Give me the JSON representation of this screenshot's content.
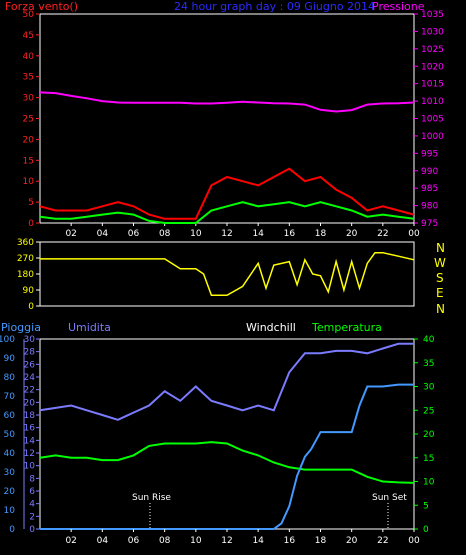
{
  "header": {
    "left": "Forza vento()",
    "center": "24 hour graph day : 09 Giugno 2014",
    "right": "Pressione",
    "left_color": "#ff2020",
    "center_color": "#2b2bff",
    "right_color": "#ff00ff"
  },
  "wind_dir_labels": [
    "N",
    "W",
    "S",
    "E",
    "N"
  ],
  "bottom_header": {
    "pioggia": "Pioggia",
    "umidita": "Umidita",
    "windchill": "Windchill",
    "temperatura": "Temperatura"
  },
  "annotations": {
    "sunrise": "Sun Rise",
    "sunset": "Sun Set"
  },
  "chart_data": [
    {
      "type": "line",
      "name": "wind-pressure",
      "x_ticks": [
        "02",
        "04",
        "06",
        "08",
        "10",
        "12",
        "14",
        "16",
        "18",
        "20",
        "22",
        "00"
      ],
      "y_left_ticks": [
        "0",
        "5",
        "10",
        "15",
        "20",
        "25",
        "30",
        "35",
        "40",
        "45",
        "50"
      ],
      "y_left_range": [
        0,
        50
      ],
      "y_right_ticks": [
        "975",
        "980",
        "985",
        "990",
        "995",
        "1000",
        "1005",
        "1010",
        "1015",
        "1020",
        "1025",
        "1030",
        "1035"
      ],
      "y_right_range": [
        975,
        1035
      ],
      "series": [
        {
          "key": "pressure",
          "color": "#ff00ff",
          "x": [
            0,
            1,
            2,
            3,
            4,
            5,
            6,
            7,
            8,
            9,
            10,
            11,
            12,
            13,
            14,
            15,
            16,
            17,
            18,
            19,
            20,
            21,
            22,
            23,
            24
          ],
          "values": [
            1012.5,
            1012.3,
            1011.5,
            1010.8,
            1010.0,
            1009.6,
            1009.5,
            1009.5,
            1009.5,
            1009.5,
            1009.3,
            1009.3,
            1009.5,
            1009.8,
            1009.6,
            1009.4,
            1009.3,
            1009.0,
            1007.5,
            1007.0,
            1007.4,
            1009.0,
            1009.3,
            1009.4,
            1009.6
          ]
        },
        {
          "key": "wind_gust",
          "color": "#ff0000",
          "x": [
            0,
            1,
            2,
            3,
            4,
            5,
            6,
            7,
            8,
            9,
            10,
            11,
            12,
            13,
            14,
            15,
            16,
            17,
            18,
            19,
            20,
            21,
            22,
            23,
            24
          ],
          "values": [
            4,
            3,
            3,
            3,
            4,
            5,
            4,
            2,
            1,
            1,
            1,
            9,
            11,
            10,
            9,
            11,
            13,
            10,
            11,
            8,
            6,
            3,
            4,
            3,
            2
          ]
        },
        {
          "key": "wind_avg",
          "color": "#00ff00",
          "x": [
            0,
            1,
            2,
            3,
            4,
            5,
            6,
            7,
            8,
            9,
            10,
            11,
            12,
            13,
            14,
            15,
            16,
            17,
            18,
            19,
            20,
            21,
            22,
            23,
            24
          ],
          "values": [
            1.5,
            1,
            1,
            1.5,
            2,
            2.5,
            2,
            0.5,
            0,
            0,
            0,
            3,
            4,
            5,
            4,
            4.5,
            5,
            4,
            5,
            4,
            3,
            1.5,
            2,
            1.5,
            1
          ]
        }
      ]
    },
    {
      "type": "line",
      "name": "wind-direction",
      "y_ticks": [
        "0",
        "90",
        "180",
        "270",
        "360"
      ],
      "y_range": [
        0,
        360
      ],
      "series": [
        {
          "key": "direction",
          "color": "#ffff00",
          "x": [
            0,
            1,
            2,
            3,
            4,
            5,
            6,
            7,
            8,
            9,
            10,
            10.5,
            11,
            12,
            13,
            14,
            14.5,
            15,
            16,
            16.5,
            17,
            17.5,
            18,
            18.5,
            19,
            19.5,
            20,
            20.5,
            21,
            21.5,
            22,
            23,
            24
          ],
          "values": [
            265,
            265,
            265,
            265,
            265,
            265,
            265,
            265,
            265,
            210,
            210,
            180,
            60,
            60,
            110,
            240,
            100,
            230,
            250,
            120,
            260,
            180,
            170,
            80,
            250,
            90,
            250,
            100,
            240,
            300,
            300,
            280,
            260
          ]
        }
      ]
    },
    {
      "type": "line",
      "name": "rain-humidity-temperature",
      "y_rain_ticks": [
        "0",
        "10",
        "20",
        "30",
        "40",
        "50",
        "60",
        "70",
        "80",
        "90",
        "100"
      ],
      "y_rain_range": [
        0,
        100
      ],
      "y_humidity_ticks": [
        "0",
        "2",
        "4",
        "6",
        "8",
        "10",
        "12",
        "14",
        "16",
        "18",
        "20",
        "22",
        "24",
        "26",
        "28",
        "30"
      ],
      "y_humidity_range": [
        0,
        30
      ],
      "y_temp_ticks": [
        "0",
        "5",
        "10",
        "15",
        "20",
        "25",
        "30",
        "35",
        "40"
      ],
      "y_temp_range": [
        0,
        40
      ],
      "series": [
        {
          "key": "humidity",
          "color": "#7b7bff",
          "axis": "temp",
          "x": [
            0,
            1,
            2,
            3,
            4,
            5,
            6,
            7,
            8,
            9,
            10,
            11,
            12,
            13,
            14,
            15,
            16,
            17,
            18,
            19,
            20,
            21,
            22,
            23,
            24
          ],
          "values": [
            25,
            25.5,
            26,
            25,
            24,
            23,
            24.5,
            26,
            29,
            27,
            30,
            27,
            26,
            25,
            26,
            25,
            33,
            37,
            37,
            37.5,
            37.5,
            37,
            38,
            39,
            39
          ]
        },
        {
          "key": "temperature",
          "color": "#00ff00",
          "axis": "temp",
          "x": [
            0,
            1,
            2,
            3,
            4,
            5,
            6,
            7,
            8,
            9,
            10,
            11,
            12,
            13,
            14,
            15,
            16,
            17,
            18,
            19,
            20,
            21,
            22,
            23,
            24
          ],
          "values": [
            15,
            15.5,
            15,
            15,
            14.5,
            14.5,
            15.5,
            17.5,
            18,
            18,
            18,
            18.3,
            18,
            16.5,
            15.5,
            14,
            13,
            12.5,
            12.5,
            12.5,
            12.5,
            11,
            10,
            9.8,
            9.7
          ]
        },
        {
          "key": "rain",
          "color": "#4499ff",
          "axis": "rain",
          "x": [
            0,
            1,
            2,
            3,
            4,
            5,
            6,
            7,
            8,
            9,
            10,
            11,
            12,
            13,
            14,
            15,
            15.5,
            16,
            16.5,
            17,
            17.4,
            17.8,
            18,
            18.4,
            19,
            19.5,
            20,
            20.5,
            21,
            22,
            23,
            24
          ],
          "values": [
            0,
            0,
            0,
            0,
            0,
            0,
            0,
            0,
            0,
            0,
            0,
            0,
            0,
            0,
            0,
            0,
            3,
            12,
            28,
            38,
            42,
            48,
            51,
            51,
            51,
            51,
            51,
            65,
            75,
            75,
            76,
            76
          ]
        }
      ]
    }
  ]
}
